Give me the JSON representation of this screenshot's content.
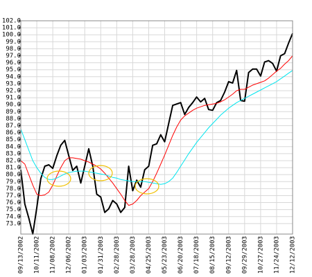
{
  "chart_data": {
    "type": "line",
    "categories": [
      "09/13/2002",
      null,
      null,
      null,
      "10/11/2002",
      null,
      null,
      null,
      "11/08/2002",
      null,
      null,
      null,
      "12/06/2002",
      null,
      null,
      null,
      "01/03/2003",
      null,
      null,
      null,
      "01/31/2003",
      null,
      null,
      null,
      "02/28/2003",
      null,
      null,
      null,
      "03/28/2003",
      null,
      null,
      null,
      "04/25/2003",
      null,
      null,
      null,
      "05/23/2003",
      null,
      null,
      null,
      "06/20/2003",
      null,
      null,
      null,
      "07/18/2003",
      null,
      null,
      null,
      "08/15/2003",
      null,
      null,
      null,
      "09/12/2003",
      null,
      null,
      null,
      "09/29/2003",
      null,
      null,
      null,
      "10/27/2003",
      null,
      null,
      null,
      "11/24/2003",
      null,
      null,
      null,
      "12/12/2003"
    ],
    "series": [
      {
        "color": "#000000",
        "values": [
          80.7,
          75.8,
          73.8,
          71.5,
          75.3,
          79.4,
          81.2,
          81.4,
          80.9,
          82.7,
          84.2,
          84.9,
          82.7,
          80.6,
          81.2,
          78.8,
          81.2,
          83.7,
          81.2,
          77.2,
          76.8,
          74.6,
          75.1,
          76.3,
          75.8,
          74.6,
          75.3,
          81.2,
          77.7,
          79.2,
          78.2,
          80.7,
          81.2,
          84.2,
          84.4,
          85.7,
          84.7,
          87.3,
          89.9,
          90.1,
          90.3,
          88.6,
          89.6,
          90.3,
          91.1,
          90.4,
          90.9,
          89.3,
          89.2,
          90.3,
          90.6,
          91.8,
          93.3,
          93.1,
          94.9,
          90.6,
          90.5,
          94.6,
          95.1,
          95.1,
          94.1,
          96.1,
          96.3,
          95.9,
          94.8,
          97.0,
          97.3,
          98.8,
          100.2
        ]
      },
      {
        "color": "#ff0000",
        "values": [
          82.0,
          81.5,
          80,
          78.5,
          77.2,
          77,
          77.1,
          77.5,
          78.5,
          79.8,
          81,
          82,
          82.4,
          82.4,
          82.3,
          82.2,
          82.0,
          81.8,
          81.5,
          81.2,
          80.8,
          80.2,
          79.5,
          78.8,
          78,
          77.2,
          76.3,
          75.6,
          75.8,
          76.3,
          77,
          77.5,
          78,
          79,
          80.2,
          81.5,
          82.8,
          84.2,
          85.6,
          86.8,
          87.8,
          88.4,
          88.8,
          89.2,
          89.5,
          89.7,
          89.9,
          90,
          90.1,
          90.2,
          90.4,
          90.7,
          91.1,
          91.5,
          92,
          92.2,
          92.2,
          92.5,
          92.8,
          93,
          93.2,
          93.4,
          93.8,
          94.3,
          94.8,
          95.2,
          95.8,
          96.3,
          97
        ]
      },
      {
        "color": "#00e5ee",
        "values": [
          86.5,
          85,
          83.5,
          82,
          81,
          80.2,
          79.6,
          79.3,
          79.3,
          79.5,
          79.8,
          80.1,
          80.3,
          80.4,
          80.5,
          80.5,
          80.5,
          80.4,
          80.3,
          80.2,
          80.1,
          80,
          79.8,
          79.6,
          79.5,
          79.3,
          79.2,
          79.1,
          79,
          79,
          79,
          79,
          78.9,
          78.8,
          78.7,
          78.6,
          78.7,
          79,
          79.5,
          80.3,
          81.2,
          82.1,
          83,
          83.8,
          84.6,
          85.3,
          86,
          86.7,
          87.3,
          87.9,
          88.5,
          89,
          89.5,
          89.9,
          90.3,
          90.6,
          90.9,
          91.2,
          91.5,
          91.8,
          92.1,
          92.4,
          92.7,
          93,
          93.3,
          93.7,
          94.1,
          94.5,
          94.9
        ]
      }
    ],
    "ylim": [
      71.5,
      102
    ],
    "yticks": [
      {
        "value": 73,
        "label": "73.0"
      },
      {
        "value": 74,
        "label": "74.0"
      },
      {
        "value": 75,
        "label": "75.0"
      },
      {
        "value": 76,
        "label": "76.0"
      },
      {
        "value": 77,
        "label": "77.0"
      },
      {
        "value": 78,
        "label": "78.0"
      },
      {
        "value": 79,
        "label": "79.0"
      },
      {
        "value": 80,
        "label": "80.0"
      },
      {
        "value": 81,
        "label": "81.0"
      },
      {
        "value": 82,
        "label": "82.0"
      },
      {
        "value": 83,
        "label": "83.0"
      },
      {
        "value": 84,
        "label": "84.0"
      },
      {
        "value": 85,
        "label": "85.0"
      },
      {
        "value": 86,
        "label": "86.0"
      },
      {
        "value": 87,
        "label": "87.0"
      },
      {
        "value": 88,
        "label": "88.0"
      },
      {
        "value": 89,
        "label": "89.0"
      },
      {
        "value": 90,
        "label": "90.0"
      },
      {
        "value": 91,
        "label": "91.0"
      },
      {
        "value": 92,
        "label": "92.0"
      },
      {
        "value": 93,
        "label": "93.0"
      },
      {
        "value": 94,
        "label": "94.0"
      },
      {
        "value": 95,
        "label": "95.0"
      },
      {
        "value": 96,
        "label": "96.0"
      },
      {
        "value": 97,
        "label": "97.0"
      },
      {
        "value": 98,
        "label": "98.0"
      },
      {
        "value": 99,
        "label": "99.0"
      },
      {
        "value": 100,
        "label": "100.0"
      },
      {
        "value": 101,
        "label": "101.0"
      },
      {
        "value": 102,
        "label": "102.0"
      }
    ],
    "grid": true
  }
}
